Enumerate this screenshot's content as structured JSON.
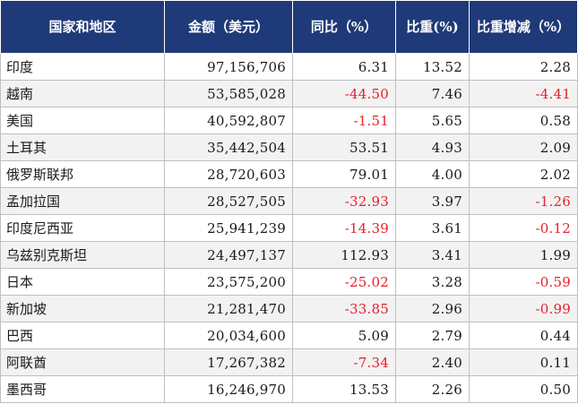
{
  "header": {
    "country": "国家和地区",
    "amount": "金额（美元）",
    "yoy": "同比（%）",
    "share": "比重(%)",
    "share_change": "比重增减（%）"
  },
  "rows": [
    {
      "country": "印度",
      "amount": "97,156,706",
      "yoy": "6.31",
      "share": "13.52",
      "share_change": "2.28"
    },
    {
      "country": "越南",
      "amount": "53,585,028",
      "yoy": "-44.50",
      "share": "7.46",
      "share_change": "-4.41"
    },
    {
      "country": "美国",
      "amount": "40,592,807",
      "yoy": "-1.51",
      "share": "5.65",
      "share_change": "0.58"
    },
    {
      "country": "土耳其",
      "amount": "35,442,504",
      "yoy": "53.51",
      "share": "4.93",
      "share_change": "2.09"
    },
    {
      "country": "俄罗斯联邦",
      "amount": "28,720,603",
      "yoy": "79.01",
      "share": "4.00",
      "share_change": "2.02"
    },
    {
      "country": "孟加拉国",
      "amount": "28,527,505",
      "yoy": "-32.93",
      "share": "3.97",
      "share_change": "-1.26"
    },
    {
      "country": "印度尼西亚",
      "amount": "25,941,239",
      "yoy": "-14.39",
      "share": "3.61",
      "share_change": "-0.12"
    },
    {
      "country": "乌兹别克斯坦",
      "amount": "24,497,137",
      "yoy": "112.93",
      "share": "3.41",
      "share_change": "1.99"
    },
    {
      "country": "日本",
      "amount": "23,575,200",
      "yoy": "-25.02",
      "share": "3.28",
      "share_change": "-0.59"
    },
    {
      "country": "新加坡",
      "amount": "21,281,470",
      "yoy": "-33.85",
      "share": "2.96",
      "share_change": "-0.99"
    },
    {
      "country": "巴西",
      "amount": "20,034,600",
      "yoy": "5.09",
      "share": "2.79",
      "share_change": "0.44"
    },
    {
      "country": "阿联酋",
      "amount": "17,267,382",
      "yoy": "-7.34",
      "share": "2.40",
      "share_change": "0.11"
    },
    {
      "country": "墨西哥",
      "amount": "16,246,970",
      "yoy": "13.53",
      "share": "2.26",
      "share_change": "0.50"
    }
  ],
  "colors": {
    "header_bg": "#1f3a78",
    "header_text": "#ffffff",
    "negative": "#e8202a",
    "stripe": "#f2f2f2"
  }
}
